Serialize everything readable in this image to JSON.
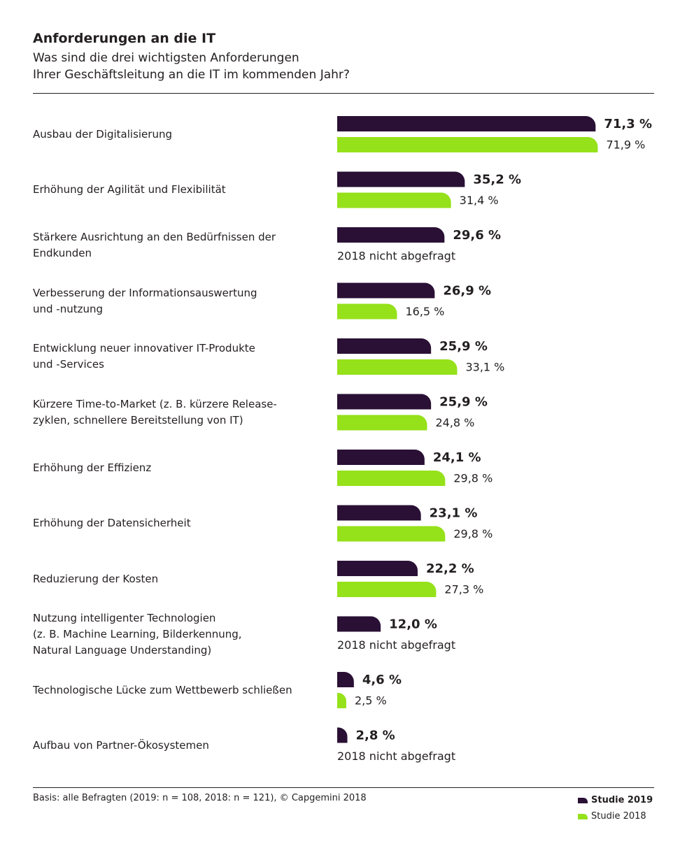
{
  "header": {
    "title": "Anforderungen an die IT",
    "subtitle": "Was sind die drei wichtigsten Anforderungen\nIhrer Geschäftsleitung an die IT im kommenden Jahr?"
  },
  "colors": {
    "series_2019": "#2a1035",
    "series_2018": "#95e11a"
  },
  "chart_data": {
    "type": "bar",
    "orientation": "horizontal",
    "title": "Anforderungen an die IT",
    "subtitle": "Was sind die drei wichtigsten Anforderungen Ihrer Geschäftsleitung an die IT im kommenden Jahr?",
    "xlabel": "",
    "ylabel": "",
    "xlim": [
      0,
      100
    ],
    "grid": false,
    "legend_position": "bottom-right",
    "not_asked_text": "2018 nicht abgefragt",
    "categories": [
      "Ausbau der Digitalisierung",
      "Erhöhung der Agilität und Flexibilität",
      "Stärkere Ausrichtung an den Bedürfnissen der\nEndkunden",
      "Verbesserung der Informationsauswertung\nund -nutzung",
      "Entwicklung neuer innovativer IT-Produkte\nund -Services",
      "Kürzere Time-to-Market (z. B. kürzere Release-\nzyklen, schnellere Bereitstellung von IT)",
      "Erhöhung der Effizienz",
      "Erhöhung der Datensicherheit",
      "Reduzierung der Kosten",
      "Nutzung intelligenter Technologien\n(z. B. Machine Learning, Bilderkennung,\nNatural Language Understanding)",
      "Technologische Lücke zum Wettbewerb schließen",
      "Aufbau von Partner-Ökosystemen"
    ],
    "series": [
      {
        "name": "Studie 2019",
        "values": [
          71.3,
          35.2,
          29.6,
          26.9,
          25.9,
          25.9,
          24.1,
          23.1,
          22.2,
          12.0,
          4.6,
          2.8
        ],
        "labels": [
          "71,3 %",
          "35,2 %",
          "29,6 %",
          "26,9 %",
          "25,9 %",
          "25,9 %",
          "24,1 %",
          "23,1 %",
          "22,2 %",
          "12,0 %",
          "4,6 %",
          "2,8 %"
        ]
      },
      {
        "name": "Studie 2018",
        "values": [
          71.9,
          31.4,
          null,
          16.5,
          33.1,
          24.8,
          29.8,
          29.8,
          27.3,
          null,
          2.5,
          null
        ],
        "labels": [
          "71,9 %",
          "31,4 %",
          null,
          "16,5 %",
          "33,1 %",
          "24,8 %",
          "29,8 %",
          "29,8 %",
          "27,3 %",
          null,
          "2,5 %",
          null
        ]
      }
    ]
  },
  "footer": {
    "note": "Basis: alle Befragten (2019: n = 108, 2018: n = 121), © Capgemini 2018",
    "legend": [
      {
        "label": "Studie 2019",
        "color": "#2a1035"
      },
      {
        "label": "Studie 2018",
        "color": "#95e11a"
      }
    ]
  }
}
